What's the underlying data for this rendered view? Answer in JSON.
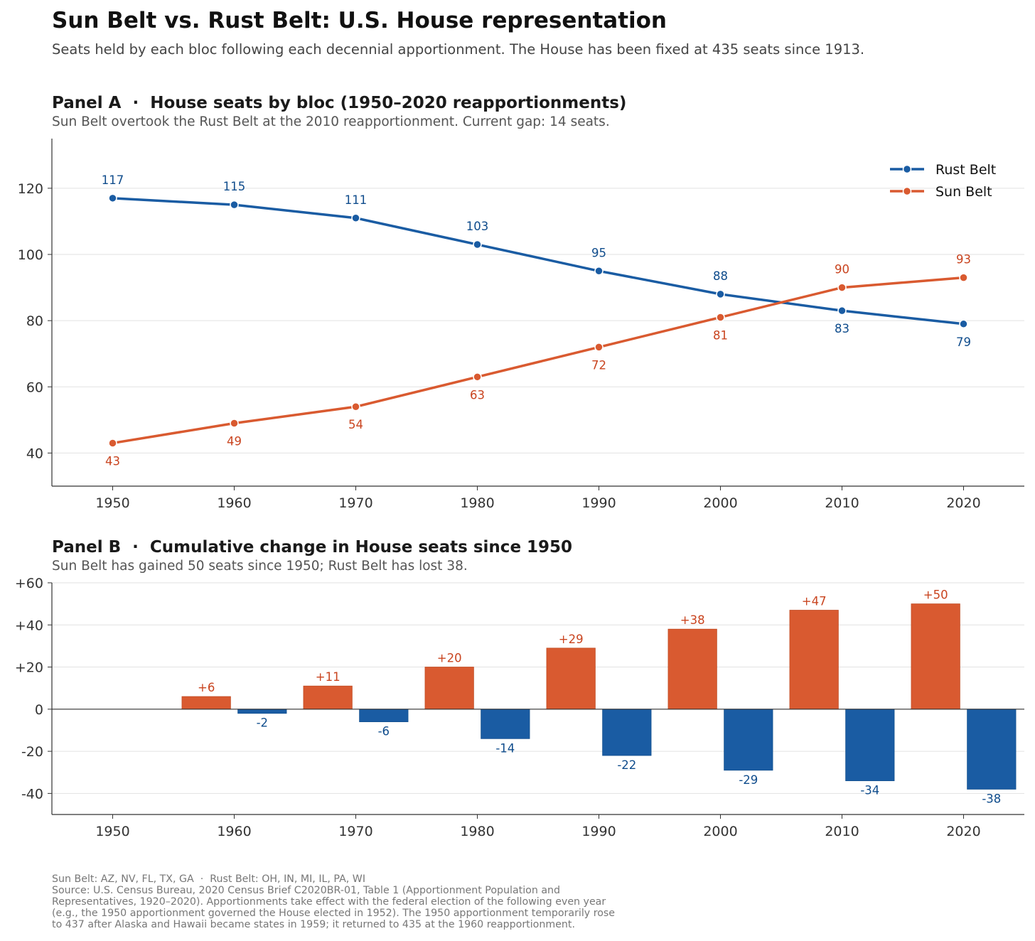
{
  "title": "Sun Belt vs. Rust Belt: U.S. House representation",
  "subtitle": "Seats held by each bloc following each decennial apportionment. The House has been fixed at 435 seats since 1913.",
  "colors": {
    "rust": "#1a5ca3",
    "sun": "#d95a30",
    "rust_label": "#0f4c8c",
    "sun_label": "#c9441f"
  },
  "chart_data": [
    {
      "type": "line",
      "title": "Panel A  ·  House seats by bloc (1950–2020 reapportionments)",
      "subtitle": "Sun Belt overtook the Rust Belt at the 2010 reapportionment. Current gap: 14 seats.",
      "x": [
        1950,
        1960,
        1970,
        1980,
        1990,
        2000,
        2010,
        2020
      ],
      "series": [
        {
          "name": "Rust Belt",
          "key": "rust",
          "values": [
            117,
            115,
            111,
            103,
            95,
            88,
            83,
            79
          ]
        },
        {
          "name": "Sun Belt",
          "key": "sun",
          "values": [
            43,
            49,
            54,
            63,
            72,
            81,
            90,
            93
          ]
        }
      ],
      "xlim": [
        1945,
        2025
      ],
      "ylim": [
        30,
        135
      ],
      "yticks": [
        40,
        60,
        80,
        100,
        120
      ],
      "xticks": [
        1950,
        1960,
        1970,
        1980,
        1990,
        2000,
        2010,
        2020
      ],
      "grid": "y",
      "legend": "top-right"
    },
    {
      "type": "bar",
      "title": "Panel B  ·  Cumulative change in House seats since 1950",
      "subtitle": "Sun Belt has gained 50 seats since 1950; Rust Belt has lost 38.",
      "x": [
        1950,
        1960,
        1970,
        1980,
        1990,
        2000,
        2010,
        2020
      ],
      "series": [
        {
          "name": "Sun Belt",
          "key": "sun",
          "values": [
            0,
            6,
            11,
            20,
            29,
            38,
            47,
            50
          ]
        },
        {
          "name": "Rust Belt",
          "key": "rust",
          "values": [
            0,
            -2,
            -6,
            -14,
            -22,
            -29,
            -34,
            -38
          ]
        }
      ],
      "xlim": [
        1945,
        2025
      ],
      "ylim": [
        -50,
        60
      ],
      "yticks": [
        -40,
        -20,
        0,
        20,
        40,
        60
      ],
      "ytick_labels": [
        "-40",
        "-20",
        "0",
        "+20",
        "+40",
        "+60"
      ],
      "xticks": [
        1950,
        1960,
        1970,
        1980,
        1990,
        2000,
        2010,
        2020
      ],
      "grid": "y"
    }
  ],
  "footer": [
    "Sun Belt: AZ, NV, FL, TX, GA  ·  Rust Belt: OH, IN, MI, IL, PA, WI",
    "Source: U.S. Census Bureau, 2020 Census Brief C2020BR-01, Table 1 (Apportionment Population and",
    "Representatives, 1920–2020). Apportionments take effect with the federal election of the following even year",
    "(e.g., the 1950 apportionment governed the House elected in 1952). The 1950 apportionment temporarily rose",
    "to 437 after Alaska and Hawaii became states in 1959; it returned to 435 at the 1960 reapportionment."
  ]
}
